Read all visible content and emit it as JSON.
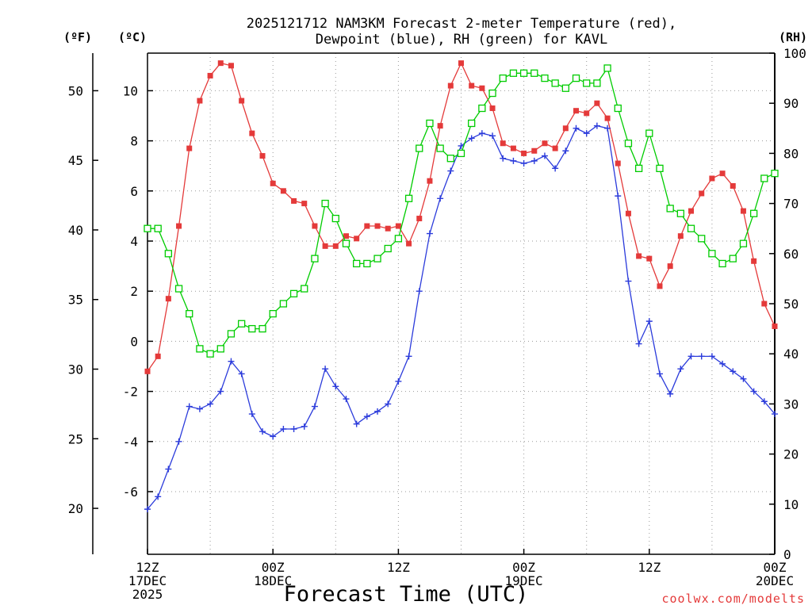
{
  "chart_data": {
    "type": "line",
    "title_lines": [
      "2025121712 NAM3KM Forecast 2-meter Temperature (red),",
      "Dewpoint (blue), RH (green) for KAVL"
    ],
    "xlabel": "Forecast Time (UTC)",
    "credit": "coolwx.com/modelts",
    "units": {
      "f": "(ºF)",
      "c": "(ºC)",
      "rh": "(RH)"
    },
    "x_range": [
      0,
      60
    ],
    "c_range": [
      -8.5,
      11.5
    ],
    "f_range": [
      16.7,
      52.7
    ],
    "rh_range": [
      0,
      100
    ],
    "c_ticks": [
      "-6",
      "-4",
      "-2",
      "0",
      "2",
      "4",
      "6",
      "8",
      "10"
    ],
    "f_ticks": [
      "20",
      "25",
      "30",
      "35",
      "40",
      "45",
      "50"
    ],
    "rh_ticks": [
      "0",
      "10",
      "20",
      "30",
      "40",
      "50",
      "60",
      "70",
      "80",
      "90",
      "100"
    ],
    "x_ticks": [
      {
        "hour": 0,
        "lines": [
          "12Z",
          "17DEC",
          "2025"
        ]
      },
      {
        "hour": 12,
        "lines": [
          "00Z",
          "18DEC"
        ]
      },
      {
        "hour": 24,
        "lines": [
          "12Z"
        ]
      },
      {
        "hour": 36,
        "lines": [
          "00Z",
          "19DEC"
        ]
      },
      {
        "hour": 48,
        "lines": [
          "12Z"
        ]
      },
      {
        "hour": 60,
        "lines": [
          "00Z",
          "20DEC"
        ]
      }
    ],
    "series": [
      {
        "name": "2-meter Temperature",
        "unit": "C",
        "color": "#e43a3a",
        "marker": "filled-square",
        "values": [
          -1.2,
          -0.6,
          1.7,
          4.6,
          7.7,
          9.6,
          10.6,
          11.1,
          11.0,
          9.6,
          8.3,
          7.4,
          6.3,
          6.0,
          5.6,
          5.5,
          4.6,
          3.8,
          3.8,
          4.2,
          4.1,
          4.6,
          4.6,
          4.5,
          4.6,
          3.9,
          4.9,
          6.4,
          8.6,
          10.2,
          11.1,
          10.2,
          10.1,
          9.3,
          7.9,
          7.7,
          7.5,
          7.6,
          7.9,
          7.7,
          8.5,
          9.2,
          9.1,
          9.5,
          8.9,
          7.1,
          5.1,
          3.4,
          3.3,
          2.2,
          3.0,
          4.2,
          5.2,
          5.9,
          6.5,
          6.7,
          6.2,
          5.2,
          3.2,
          1.5,
          0.6
        ]
      },
      {
        "name": "Dewpoint",
        "unit": "C",
        "color": "#2b3bdb",
        "marker": "plus",
        "values": [
          -6.7,
          -6.2,
          -5.1,
          -4.0,
          -2.6,
          -2.7,
          -2.5,
          -2.0,
          -0.8,
          -1.3,
          -2.9,
          -3.6,
          -3.8,
          -3.5,
          -3.5,
          -3.4,
          -2.6,
          -1.1,
          -1.8,
          -2.3,
          -3.3,
          -3.0,
          -2.8,
          -2.5,
          -1.6,
          -0.6,
          2.0,
          4.3,
          5.7,
          6.8,
          7.8,
          8.1,
          8.3,
          8.2,
          7.3,
          7.2,
          7.1,
          7.2,
          7.4,
          6.9,
          7.6,
          8.5,
          8.3,
          8.6,
          8.5,
          5.8,
          2.4,
          -0.1,
          0.8,
          -1.3,
          -2.1,
          -1.1,
          -0.6,
          -0.6,
          -0.6,
          -0.9,
          -1.2,
          -1.5,
          -2.0,
          -2.4,
          -2.9
        ]
      },
      {
        "name": "RH",
        "unit": "%",
        "color": "#00cc00",
        "marker": "open-square",
        "values": [
          65,
          65,
          60,
          53,
          48,
          41,
          40,
          41,
          44,
          46,
          45,
          45,
          48,
          50,
          52,
          53,
          59,
          70,
          67,
          62,
          58,
          58,
          59,
          61,
          63,
          71,
          81,
          86,
          81,
          79,
          80,
          86,
          89,
          92,
          95,
          96,
          96,
          96,
          95,
          94,
          93,
          95,
          94,
          94,
          97,
          89,
          82,
          77,
          84,
          77,
          69,
          68,
          65,
          63,
          60,
          58,
          59,
          62,
          68,
          75,
          76
        ]
      }
    ]
  }
}
